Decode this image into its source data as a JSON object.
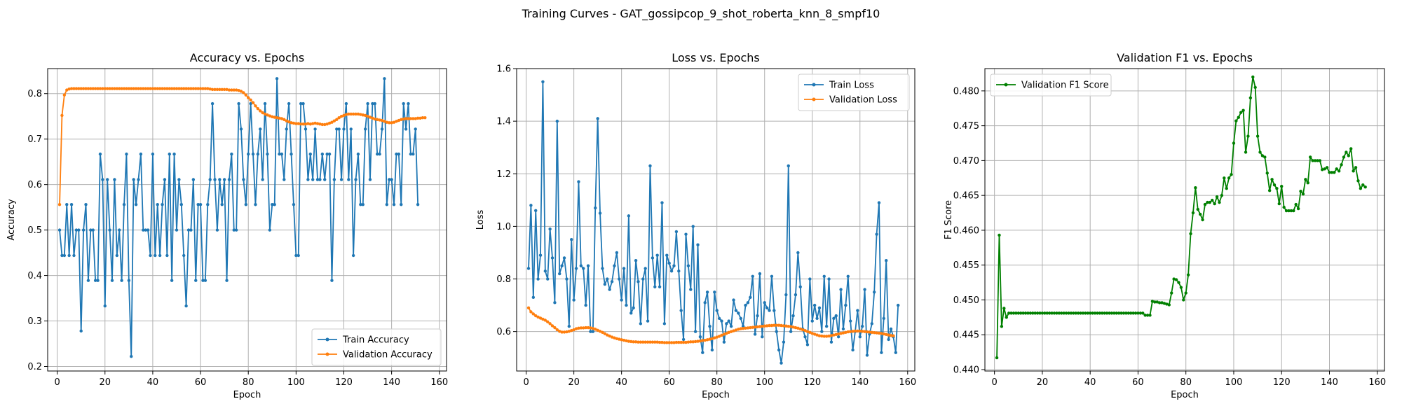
{
  "figure_title": "Training Curves - GAT_gossipcop_9_shot_roberta_knn_8_smpf10",
  "colors": {
    "train": "#1f77b4",
    "val": "#ff7f0e",
    "f1": "#008000",
    "grid": "#b0b0b0"
  },
  "chart_data": [
    {
      "type": "line",
      "title": "Accuracy vs. Epochs",
      "xlabel": "Epoch",
      "ylabel": "Accuracy",
      "xlim": [
        -4,
        163
      ],
      "ylim": [
        0.19,
        0.855
      ],
      "xticks": [
        0,
        20,
        40,
        60,
        80,
        100,
        120,
        140,
        160
      ],
      "yticks": [
        0.2,
        0.3,
        0.4,
        0.5,
        0.6,
        0.7,
        0.8
      ],
      "grid": true,
      "legend_position": "lower right",
      "series": [
        {
          "name": "Train Accuracy",
          "color": "#1f77b4",
          "values": [
            0.5,
            0.444,
            0.444,
            0.556,
            0.444,
            0.556,
            0.444,
            0.5,
            0.5,
            0.278,
            0.5,
            0.556,
            0.389,
            0.5,
            0.5,
            0.389,
            0.389,
            0.667,
            0.611,
            0.333,
            0.611,
            0.5,
            0.389,
            0.611,
            0.444,
            0.5,
            0.389,
            0.556,
            0.667,
            0.389,
            0.222,
            0.611,
            0.556,
            0.611,
            0.667,
            0.5,
            0.5,
            0.5,
            0.444,
            0.667,
            0.444,
            0.556,
            0.444,
            0.556,
            0.611,
            0.444,
            0.667,
            0.389,
            0.667,
            0.5,
            0.611,
            0.556,
            0.444,
            0.333,
            0.5,
            0.5,
            0.611,
            0.389,
            0.556,
            0.556,
            0.389,
            0.389,
            0.556,
            0.611,
            0.778,
            0.611,
            0.5,
            0.611,
            0.556,
            0.611,
            0.389,
            0.611,
            0.667,
            0.5,
            0.5,
            0.778,
            0.722,
            0.611,
            0.556,
            0.667,
            0.778,
            0.667,
            0.556,
            0.667,
            0.722,
            0.611,
            0.778,
            0.667,
            0.5,
            0.556,
            0.556,
            0.833,
            0.667,
            0.667,
            0.611,
            0.722,
            0.778,
            0.667,
            0.556,
            0.444,
            0.444,
            0.778,
            0.778,
            0.722,
            0.611,
            0.667,
            0.611,
            0.722,
            0.611,
            0.611,
            0.667,
            0.611,
            0.667,
            0.667,
            0.389,
            0.611,
            0.722,
            0.722,
            0.611,
            0.722,
            0.778,
            0.611,
            0.722,
            0.444,
            0.611,
            0.667,
            0.556,
            0.556,
            0.722,
            0.778,
            0.611,
            0.778,
            0.778,
            0.667,
            0.667,
            0.722,
            0.833,
            0.556,
            0.611,
            0.611,
            0.556,
            0.667,
            0.667,
            0.556,
            0.778,
            0.722,
            0.778,
            0.667,
            0.667,
            0.722,
            0.556
          ]
        },
        {
          "name": "Validation Accuracy",
          "color": "#ff7f0e",
          "values": [
            0.556,
            0.752,
            0.797,
            0.808,
            0.81,
            0.811,
            0.811,
            0.811,
            0.811,
            0.811,
            0.811,
            0.811,
            0.811,
            0.811,
            0.811,
            0.811,
            0.811,
            0.811,
            0.811,
            0.811,
            0.811,
            0.811,
            0.811,
            0.811,
            0.811,
            0.811,
            0.811,
            0.811,
            0.811,
            0.811,
            0.811,
            0.811,
            0.811,
            0.811,
            0.811,
            0.811,
            0.811,
            0.811,
            0.811,
            0.811,
            0.811,
            0.811,
            0.811,
            0.811,
            0.811,
            0.811,
            0.811,
            0.811,
            0.811,
            0.811,
            0.811,
            0.811,
            0.811,
            0.811,
            0.811,
            0.811,
            0.811,
            0.811,
            0.811,
            0.811,
            0.811,
            0.811,
            0.811,
            0.81,
            0.809,
            0.809,
            0.809,
            0.809,
            0.809,
            0.809,
            0.809,
            0.808,
            0.808,
            0.808,
            0.808,
            0.807,
            0.805,
            0.802,
            0.797,
            0.791,
            0.786,
            0.78,
            0.773,
            0.767,
            0.762,
            0.758,
            0.755,
            0.753,
            0.751,
            0.749,
            0.748,
            0.747,
            0.746,
            0.745,
            0.743,
            0.74,
            0.738,
            0.736,
            0.735,
            0.734,
            0.734,
            0.733,
            0.733,
            0.733,
            0.734,
            0.733,
            0.734,
            0.735,
            0.734,
            0.733,
            0.732,
            0.732,
            0.733,
            0.735,
            0.737,
            0.74,
            0.743,
            0.747,
            0.75,
            0.752,
            0.754,
            0.755,
            0.755,
            0.755,
            0.755,
            0.755,
            0.754,
            0.753,
            0.752,
            0.75,
            0.748,
            0.746,
            0.744,
            0.743,
            0.742,
            0.741,
            0.739,
            0.737,
            0.736,
            0.736,
            0.737,
            0.739,
            0.741,
            0.743,
            0.744,
            0.745,
            0.745,
            0.745,
            0.745,
            0.745,
            0.746,
            0.746,
            0.747,
            0.747
          ]
        }
      ]
    },
    {
      "type": "line",
      "title": "Loss vs. Epochs",
      "xlabel": "Epoch",
      "ylabel": "Loss",
      "xlim": [
        -4,
        163
      ],
      "ylim": [
        0.45,
        1.6
      ],
      "xticks": [
        0,
        20,
        40,
        60,
        80,
        100,
        120,
        140,
        160
      ],
      "yticks": [
        0.6,
        0.8,
        1.0,
        1.2,
        1.4,
        1.6
      ],
      "grid": true,
      "legend_position": "upper right",
      "series": [
        {
          "name": "Train Loss",
          "color": "#1f77b4",
          "values": [
            0.84,
            1.08,
            0.73,
            1.06,
            0.8,
            0.89,
            1.55,
            0.83,
            0.8,
            0.99,
            0.88,
            0.71,
            1.4,
            0.82,
            0.85,
            0.88,
            0.8,
            0.62,
            0.95,
            0.72,
            0.84,
            1.17,
            0.85,
            0.84,
            0.7,
            0.85,
            0.6,
            0.6,
            1.07,
            1.41,
            1.05,
            0.84,
            0.78,
            0.8,
            0.76,
            0.79,
            0.85,
            0.9,
            0.8,
            0.72,
            0.84,
            0.7,
            1.04,
            0.67,
            0.69,
            0.87,
            0.79,
            0.63,
            0.8,
            0.84,
            0.64,
            1.23,
            0.88,
            0.77,
            0.89,
            0.77,
            1.09,
            0.63,
            0.89,
            0.86,
            0.83,
            0.85,
            0.98,
            0.83,
            0.68,
            0.57,
            0.97,
            0.85,
            0.76,
            1.0,
            0.6,
            0.93,
            0.58,
            0.52,
            0.71,
            0.75,
            0.62,
            0.53,
            0.75,
            0.68,
            0.65,
            0.64,
            0.56,
            0.63,
            0.64,
            0.62,
            0.72,
            0.68,
            0.67,
            0.65,
            0.62,
            0.7,
            0.71,
            0.73,
            0.81,
            0.59,
            0.66,
            0.82,
            0.58,
            0.71,
            0.69,
            0.68,
            0.81,
            0.68,
            0.6,
            0.53,
            0.48,
            0.56,
            0.74,
            1.23,
            0.6,
            0.66,
            0.74,
            0.9,
            0.77,
            0.61,
            0.58,
            0.55,
            0.8,
            0.64,
            0.7,
            0.65,
            0.69,
            0.6,
            0.81,
            0.62,
            0.8,
            0.56,
            0.65,
            0.66,
            0.58,
            0.76,
            0.61,
            0.7,
            0.81,
            0.64,
            0.53,
            0.6,
            0.68,
            0.58,
            0.62,
            0.76,
            0.51,
            0.59,
            0.63,
            0.75,
            0.97,
            1.09,
            0.52,
            0.65,
            0.87,
            0.57,
            0.61,
            0.58,
            0.52,
            0.7
          ]
        },
        {
          "name": "Validation Loss",
          "color": "#ff7f0e",
          "values": [
            0.69,
            0.675,
            0.667,
            0.66,
            0.655,
            0.651,
            0.647,
            0.643,
            0.637,
            0.63,
            0.622,
            0.615,
            0.607,
            0.601,
            0.598,
            0.598,
            0.599,
            0.601,
            0.604,
            0.607,
            0.611,
            0.613,
            0.614,
            0.614,
            0.615,
            0.615,
            0.614,
            0.612,
            0.609,
            0.605,
            0.601,
            0.597,
            0.592,
            0.587,
            0.583,
            0.579,
            0.576,
            0.573,
            0.571,
            0.569,
            0.567,
            0.565,
            0.563,
            0.562,
            0.561,
            0.561,
            0.56,
            0.56,
            0.56,
            0.56,
            0.56,
            0.56,
            0.56,
            0.56,
            0.56,
            0.559,
            0.559,
            0.558,
            0.558,
            0.558,
            0.558,
            0.558,
            0.559,
            0.559,
            0.559,
            0.559,
            0.559,
            0.56,
            0.561,
            0.561,
            0.562,
            0.563,
            0.564,
            0.566,
            0.567,
            0.569,
            0.571,
            0.573,
            0.576,
            0.579,
            0.582,
            0.586,
            0.59,
            0.593,
            0.597,
            0.6,
            0.603,
            0.606,
            0.609,
            0.611,
            0.612,
            0.613,
            0.614,
            0.615,
            0.616,
            0.617,
            0.618,
            0.619,
            0.62,
            0.621,
            0.622,
            0.623,
            0.623,
            0.624,
            0.624,
            0.624,
            0.623,
            0.622,
            0.621,
            0.62,
            0.619,
            0.617,
            0.615,
            0.613,
            0.61,
            0.607,
            0.604,
            0.6,
            0.597,
            0.593,
            0.59,
            0.587,
            0.584,
            0.583,
            0.582,
            0.582,
            0.583,
            0.585,
            0.587,
            0.589,
            0.591,
            0.593,
            0.595,
            0.597,
            0.599,
            0.6,
            0.601,
            0.602,
            0.602,
            0.602,
            0.601,
            0.6,
            0.599,
            0.598,
            0.597,
            0.596,
            0.595,
            0.594,
            0.593,
            0.591,
            0.589,
            0.587,
            0.585,
            0.584
          ]
        }
      ]
    },
    {
      "type": "line",
      "title": "Validation F1 vs. Epochs",
      "xlabel": "Epoch",
      "ylabel": "F1 Score",
      "xlim": [
        -4,
        163
      ],
      "ylim": [
        0.4398,
        0.4832
      ],
      "xticks": [
        0,
        20,
        40,
        60,
        80,
        100,
        120,
        140,
        160
      ],
      "yticks": [
        0.44,
        0.445,
        0.45,
        0.455,
        0.46,
        0.465,
        0.47,
        0.475,
        0.48
      ],
      "grid": true,
      "legend_position": "upper left",
      "series": [
        {
          "name": "Validation F1 Score",
          "color": "#008000",
          "values": [
            0.4417,
            0.4593,
            0.4462,
            0.4488,
            0.4475,
            0.4481,
            0.4481,
            0.4481,
            0.4481,
            0.4481,
            0.4481,
            0.4481,
            0.4481,
            0.4481,
            0.4481,
            0.4481,
            0.4481,
            0.4481,
            0.4481,
            0.4481,
            0.4481,
            0.4481,
            0.4481,
            0.4481,
            0.4481,
            0.4481,
            0.4481,
            0.4481,
            0.4481,
            0.4481,
            0.4481,
            0.4481,
            0.4481,
            0.4481,
            0.4481,
            0.4481,
            0.4481,
            0.4481,
            0.4481,
            0.4481,
            0.4481,
            0.4481,
            0.4481,
            0.4481,
            0.4481,
            0.4481,
            0.4481,
            0.4481,
            0.4481,
            0.4481,
            0.4481,
            0.4481,
            0.4481,
            0.4481,
            0.4481,
            0.4481,
            0.4481,
            0.4481,
            0.4481,
            0.4481,
            0.4481,
            0.4481,
            0.4478,
            0.4478,
            0.4478,
            0.4498,
            0.4497,
            0.4497,
            0.4496,
            0.4496,
            0.4495,
            0.4494,
            0.4493,
            0.451,
            0.453,
            0.4529,
            0.4525,
            0.4518,
            0.45,
            0.451,
            0.4536,
            0.4595,
            0.4625,
            0.4661,
            0.463,
            0.4623,
            0.4615,
            0.4637,
            0.464,
            0.464,
            0.4643,
            0.4638,
            0.4648,
            0.464,
            0.465,
            0.4675,
            0.466,
            0.4675,
            0.468,
            0.4725,
            0.4757,
            0.4762,
            0.4769,
            0.4772,
            0.4712,
            0.4735,
            0.479,
            0.482,
            0.4805,
            0.4735,
            0.4712,
            0.4707,
            0.4705,
            0.4682,
            0.4657,
            0.4673,
            0.4665,
            0.466,
            0.4638,
            0.4663,
            0.4633,
            0.4628,
            0.4628,
            0.4628,
            0.4628,
            0.4637,
            0.4631,
            0.4656,
            0.4652,
            0.4673,
            0.4668,
            0.4705,
            0.47,
            0.47,
            0.47,
            0.47,
            0.4687,
            0.4688,
            0.469,
            0.4683,
            0.4683,
            0.4683,
            0.4688,
            0.4685,
            0.4694,
            0.4705,
            0.4712,
            0.4707,
            0.4717,
            0.4685,
            0.469,
            0.4671,
            0.466,
            0.4665,
            0.4662
          ]
        }
      ]
    }
  ]
}
